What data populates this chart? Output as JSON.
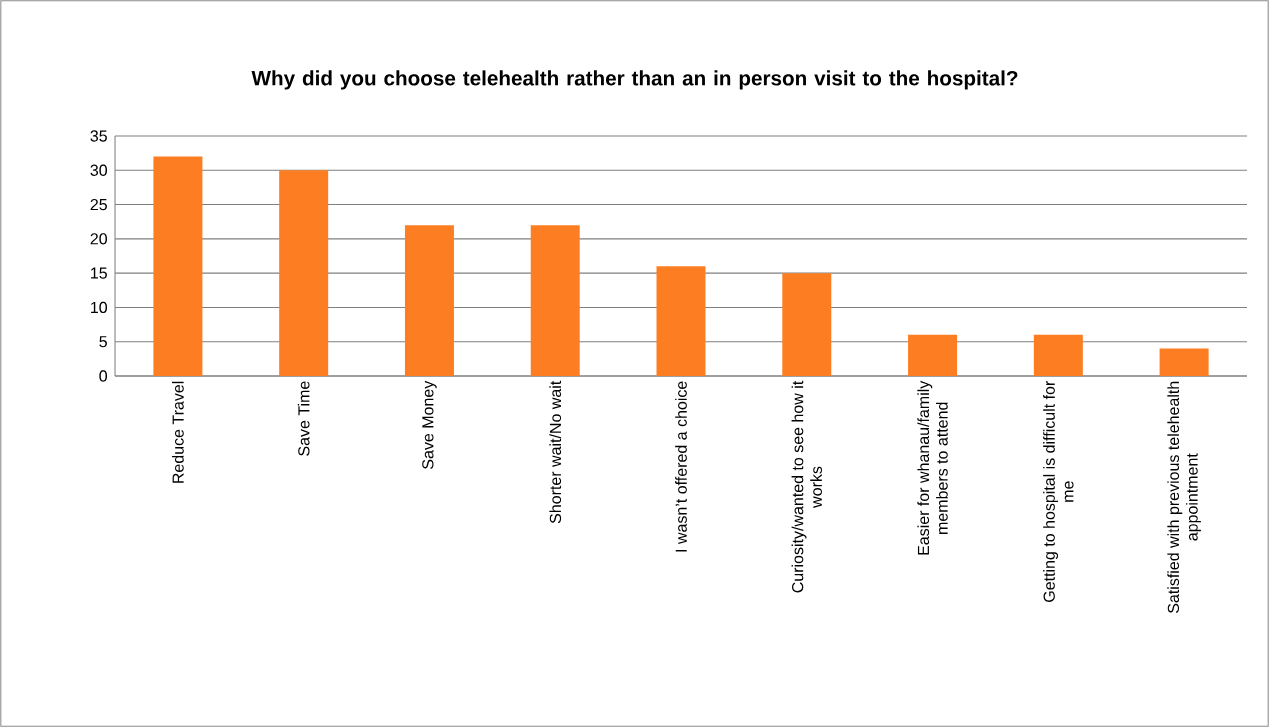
{
  "chart_data": {
    "type": "bar",
    "title": "Why did you choose telehealth rather than an in person visit to the hospital?",
    "categories": [
      "Reduce Travel",
      "Save Time",
      "Save Money",
      "Shorter wait/No wait",
      "I wasn’t offered a choice",
      "Curiosity/wanted to see how it works",
      "Easier for whanau/family members to attend",
      "Getting to hospital is difficult for me",
      "Satisfied with previous telehealth appointment"
    ],
    "values": [
      32,
      30,
      22,
      22,
      16,
      15,
      6,
      6,
      4
    ],
    "color": "#fd7e22",
    "ylim": [
      0,
      35
    ],
    "yticks": [
      0,
      5,
      10,
      15,
      20,
      25,
      30,
      35
    ],
    "grid": "y"
  }
}
